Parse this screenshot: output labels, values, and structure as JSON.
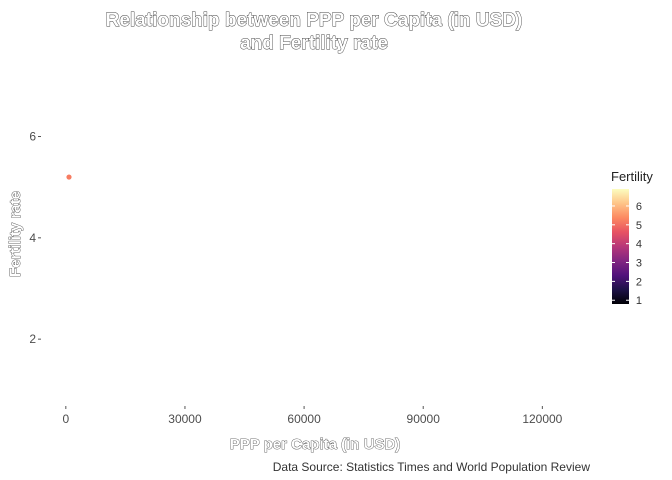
{
  "chart_data": {
    "type": "scatter",
    "title_lines": [
      "Relationship between PPP per Capita (in USD)",
      "and Fertility rate"
    ],
    "xlabel": "PPP per Capita (in USD)",
    "ylabel": "Fertility rate",
    "caption": "Data Source: Statistics Times and World Population Review",
    "xlim": [
      -6000,
      132000
    ],
    "ylim": [
      0.7,
      6.8
    ],
    "x_ticks": [
      0,
      30000,
      60000,
      90000,
      120000
    ],
    "x_tick_labels": [
      "0",
      "30000",
      "60000",
      "90000",
      "120000"
    ],
    "y_ticks": [
      2,
      4,
      6
    ],
    "y_tick_labels": [
      "2",
      "4",
      "6"
    ],
    "grid": false,
    "points": [
      {
        "x": 800,
        "y": 5.2,
        "fertility": 5.2
      }
    ],
    "legend": {
      "title": "Fertility",
      "placement": "right",
      "min": 0.8,
      "max": 6.9,
      "ticks": [
        1,
        2,
        3,
        4,
        5,
        6
      ],
      "tick_labels": [
        "1",
        "2",
        "3",
        "4",
        "5",
        "6"
      ],
      "gradient_colors": [
        "#000004",
        "#1d1147",
        "#51127c",
        "#822681",
        "#b73779",
        "#e75263",
        "#fc8961",
        "#fec488",
        "#fcfdbf"
      ]
    }
  }
}
